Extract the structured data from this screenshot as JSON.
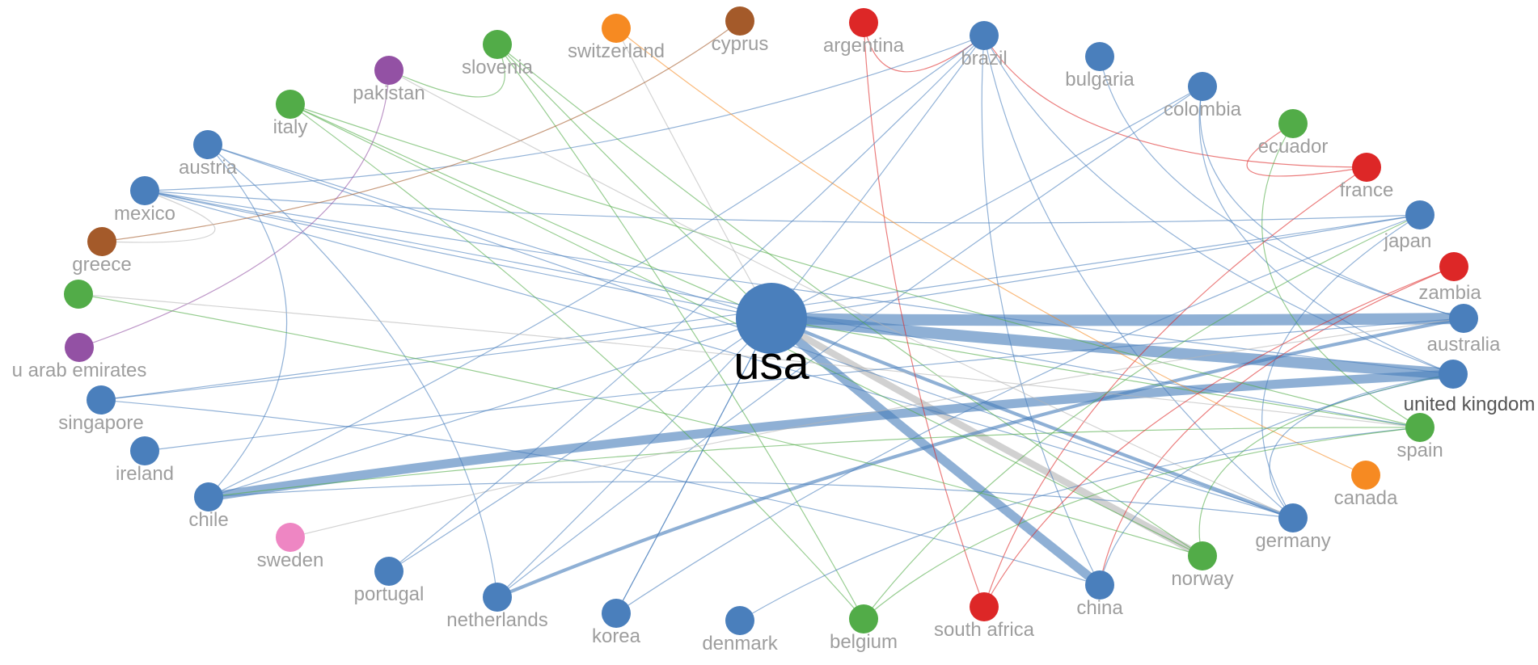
{
  "colors": {
    "blue": "#4a7fbc",
    "green": "#52ac48",
    "red": "#dd2727",
    "orange": "#f68a22",
    "brown": "#a45a2a",
    "purple": "#9351a4",
    "pink": "#ee86c3",
    "gray": "#b5b5b5"
  },
  "nodes": [
    {
      "id": "usa",
      "label": "usa",
      "color": "blue",
      "weight": 10
    },
    {
      "id": "australia",
      "label": "australia",
      "color": "blue",
      "weight": 2
    },
    {
      "id": "united kingdom",
      "label": "united kingdom",
      "color": "blue",
      "weight": 2
    },
    {
      "id": "spain",
      "label": "spain",
      "color": "green",
      "weight": 2
    },
    {
      "id": "canada",
      "label": "canada",
      "color": "orange",
      "weight": 2
    },
    {
      "id": "germany",
      "label": "germany",
      "color": "blue",
      "weight": 2
    },
    {
      "id": "norway",
      "label": "norway",
      "color": "green",
      "weight": 2
    },
    {
      "id": "china",
      "label": "china",
      "color": "blue",
      "weight": 2
    },
    {
      "id": "south africa",
      "label": "south africa",
      "color": "red",
      "weight": 2
    },
    {
      "id": "belgium",
      "label": "belgium",
      "color": "green",
      "weight": 2
    },
    {
      "id": "denmark",
      "label": "denmark",
      "color": "blue",
      "weight": 2
    },
    {
      "id": "korea",
      "label": "korea",
      "color": "blue",
      "weight": 2
    },
    {
      "id": "netherlands",
      "label": "netherlands",
      "color": "blue",
      "weight": 2
    },
    {
      "id": "portugal",
      "label": "portugal",
      "color": "blue",
      "weight": 2
    },
    {
      "id": "sweden",
      "label": "sweden",
      "color": "pink",
      "weight": 2
    },
    {
      "id": "chile",
      "label": "chile",
      "color": "blue",
      "weight": 2
    },
    {
      "id": "ireland",
      "label": "ireland",
      "color": "blue",
      "weight": 2
    },
    {
      "id": "singapore",
      "label": "singapore",
      "color": "blue",
      "weight": 2
    },
    {
      "id": "u arab emirates",
      "label": "u arab emirates",
      "color": "purple",
      "weight": 2
    },
    {
      "id": "u arab emirates green",
      "label": "",
      "color": "green",
      "weight": 2
    },
    {
      "id": "greece",
      "label": "greece",
      "color": "brown",
      "weight": 2
    },
    {
      "id": "mexico",
      "label": "mexico",
      "color": "blue",
      "weight": 2
    },
    {
      "id": "austria",
      "label": "austria",
      "color": "blue",
      "weight": 2
    },
    {
      "id": "italy",
      "label": "italy",
      "color": "green",
      "weight": 2
    },
    {
      "id": "pakistan",
      "label": "pakistan",
      "color": "purple",
      "weight": 2
    },
    {
      "id": "slovenia",
      "label": "slovenia",
      "color": "green",
      "weight": 2
    },
    {
      "id": "switzerland",
      "label": "switzerland",
      "color": "orange",
      "weight": 2
    },
    {
      "id": "cyprus",
      "label": "cyprus",
      "color": "brown",
      "weight": 2
    },
    {
      "id": "argentina",
      "label": "argentina",
      "color": "red",
      "weight": 2
    },
    {
      "id": "brazil",
      "label": "brazil",
      "color": "blue",
      "weight": 2
    },
    {
      "id": "bulgaria",
      "label": "bulgaria",
      "color": "blue",
      "weight": 2
    },
    {
      "id": "colombia",
      "label": "colombia",
      "color": "blue",
      "weight": 2
    },
    {
      "id": "ecuador",
      "label": "ecuador",
      "color": "green",
      "weight": 2
    },
    {
      "id": "france",
      "label": "france",
      "color": "red",
      "weight": 2
    },
    {
      "id": "japan",
      "label": "japan",
      "color": "blue",
      "weight": 2
    },
    {
      "id": "zambia",
      "label": "zambia",
      "color": "red",
      "weight": 2
    }
  ],
  "edges": [
    {
      "s": "usa",
      "t": "australia",
      "w": 10,
      "c": "blue"
    },
    {
      "s": "usa",
      "t": "united kingdom",
      "w": 10,
      "c": "blue"
    },
    {
      "s": "usa",
      "t": "china",
      "w": 8,
      "c": "blue"
    },
    {
      "s": "usa",
      "t": "norway",
      "w": 6,
      "c": "gray"
    },
    {
      "s": "usa",
      "t": "germany",
      "w": 3,
      "c": "blue"
    },
    {
      "s": "chile",
      "t": "united kingdom",
      "w": 8,
      "c": "blue"
    },
    {
      "s": "netherlands",
      "t": "australia",
      "w": 3,
      "c": "blue"
    },
    {
      "s": "usa",
      "t": "brazil",
      "w": 1,
      "c": "blue"
    },
    {
      "s": "usa",
      "t": "colombia",
      "w": 1,
      "c": "blue"
    },
    {
      "s": "usa",
      "t": "mexico",
      "w": 1,
      "c": "blue"
    },
    {
      "s": "usa",
      "t": "chile",
      "w": 1,
      "c": "blue"
    },
    {
      "s": "usa",
      "t": "singapore",
      "w": 1,
      "c": "blue"
    },
    {
      "s": "usa",
      "t": "japan",
      "w": 1,
      "c": "blue"
    },
    {
      "s": "usa",
      "t": "portugal",
      "w": 1,
      "c": "blue"
    },
    {
      "s": "usa",
      "t": "italy",
      "w": 1,
      "c": "green"
    },
    {
      "s": "usa",
      "t": "spain",
      "w": 1,
      "c": "green"
    },
    {
      "s": "usa",
      "t": "switzerland",
      "w": 1,
      "c": "gray"
    },
    {
      "s": "usa",
      "t": "austria",
      "w": 1,
      "c": "blue"
    },
    {
      "s": "usa",
      "t": "korea",
      "w": 1,
      "c": "blue"
    },
    {
      "s": "usa",
      "t": "slovenia",
      "w": 1,
      "c": "green"
    },
    {
      "s": "argentina",
      "t": "brazil",
      "w": 1,
      "c": "red"
    },
    {
      "s": "argentina",
      "t": "south africa",
      "w": 1,
      "c": "red"
    },
    {
      "s": "brazil",
      "t": "france",
      "w": 1,
      "c": "red"
    },
    {
      "s": "brazil",
      "t": "mexico",
      "w": 1,
      "c": "blue"
    },
    {
      "s": "brazil",
      "t": "chile",
      "w": 1,
      "c": "blue"
    },
    {
      "s": "brazil",
      "t": "china",
      "w": 1,
      "c": "blue"
    },
    {
      "s": "brazil",
      "t": "germany",
      "w": 1,
      "c": "blue"
    },
    {
      "s": "brazil",
      "t": "united kingdom",
      "w": 1,
      "c": "blue"
    },
    {
      "s": "bulgaria",
      "t": "australia",
      "w": 1,
      "c": "blue"
    },
    {
      "s": "colombia",
      "t": "netherlands",
      "w": 1,
      "c": "blue"
    },
    {
      "s": "colombia",
      "t": "united kingdom",
      "w": 1,
      "c": "blue"
    },
    {
      "s": "colombia",
      "t": "australia",
      "w": 1,
      "c": "blue"
    },
    {
      "s": "ecuador",
      "t": "spain",
      "w": 1,
      "c": "green"
    },
    {
      "s": "ecuador",
      "t": "france",
      "w": 1,
      "c": "red"
    },
    {
      "s": "france",
      "t": "south africa",
      "w": 1,
      "c": "red"
    },
    {
      "s": "zambia",
      "t": "china",
      "w": 1,
      "c": "red"
    },
    {
      "s": "japan",
      "t": "germany",
      "w": 1,
      "c": "blue"
    },
    {
      "s": "japan",
      "t": "korea",
      "w": 1,
      "c": "blue"
    },
    {
      "s": "japan",
      "t": "mexico",
      "w": 1,
      "c": "blue"
    },
    {
      "s": "japan",
      "t": "singapore",
      "w": 1,
      "c": "blue"
    },
    {
      "s": "mexico",
      "t": "spain",
      "w": 1,
      "c": "blue"
    },
    {
      "s": "mexico",
      "t": "germany",
      "w": 1,
      "c": "blue"
    },
    {
      "s": "mexico",
      "t": "united kingdom",
      "w": 1,
      "c": "blue"
    },
    {
      "s": "austria",
      "t": "germany",
      "w": 1,
      "c": "blue"
    },
    {
      "s": "austria",
      "t": "netherlands",
      "w": 1,
      "c": "blue"
    },
    {
      "s": "austria",
      "t": "chile",
      "w": 1,
      "c": "blue"
    },
    {
      "s": "italy",
      "t": "spain",
      "w": 1,
      "c": "green"
    },
    {
      "s": "italy",
      "t": "belgium",
      "w": 1,
      "c": "green"
    },
    {
      "s": "italy",
      "t": "norway",
      "w": 1,
      "c": "green"
    },
    {
      "s": "slovenia",
      "t": "belgium",
      "w": 1,
      "c": "green"
    },
    {
      "s": "slovenia",
      "t": "norway",
      "w": 1,
      "c": "green"
    },
    {
      "s": "slovenia",
      "t": "pakistan",
      "w": 1,
      "c": "green"
    },
    {
      "s": "switzerland",
      "t": "canada",
      "w": 1,
      "c": "orange"
    },
    {
      "s": "cyprus",
      "t": "greece",
      "w": 1,
      "c": "brown"
    },
    {
      "s": "pakistan",
      "t": "u arab emirates",
      "w": 1,
      "c": "purple"
    },
    {
      "s": "pakistan",
      "t": "germany",
      "w": 1,
      "c": "gray"
    },
    {
      "s": "u arab emirates green",
      "t": "norway",
      "w": 1,
      "c": "green"
    },
    {
      "s": "u arab emirates green",
      "t": "spain",
      "w": 1,
      "c": "gray"
    },
    {
      "s": "singapore",
      "t": "china",
      "w": 1,
      "c": "blue"
    },
    {
      "s": "ireland",
      "t": "australia",
      "w": 1,
      "c": "blue"
    },
    {
      "s": "chile",
      "t": "germany",
      "w": 1,
      "c": "blue"
    },
    {
      "s": "chile",
      "t": "spain",
      "w": 1,
      "c": "green"
    },
    {
      "s": "sweden",
      "t": "australia",
      "w": 1,
      "c": "gray"
    },
    {
      "s": "portugal",
      "t": "brazil",
      "w": 1,
      "c": "blue"
    },
    {
      "s": "netherlands",
      "t": "usa",
      "w": 1,
      "c": "blue"
    },
    {
      "s": "korea",
      "t": "usa",
      "w": 1,
      "c": "blue"
    },
    {
      "s": "denmark",
      "t": "spain",
      "w": 1,
      "c": "blue"
    },
    {
      "s": "belgium",
      "t": "spain",
      "w": 1,
      "c": "green"
    },
    {
      "s": "belgium",
      "t": "japan",
      "w": 1,
      "c": "green"
    },
    {
      "s": "south africa",
      "t": "zambia",
      "w": 1,
      "c": "red"
    },
    {
      "s": "norway",
      "t": "united kingdom",
      "w": 1,
      "c": "green"
    },
    {
      "s": "china",
      "t": "united kingdom",
      "w": 1,
      "c": "blue"
    },
    {
      "s": "germany",
      "t": "united kingdom",
      "w": 1,
      "c": "blue"
    },
    {
      "s": "greece",
      "t": "mexico",
      "w": 1,
      "c": "gray"
    }
  ]
}
